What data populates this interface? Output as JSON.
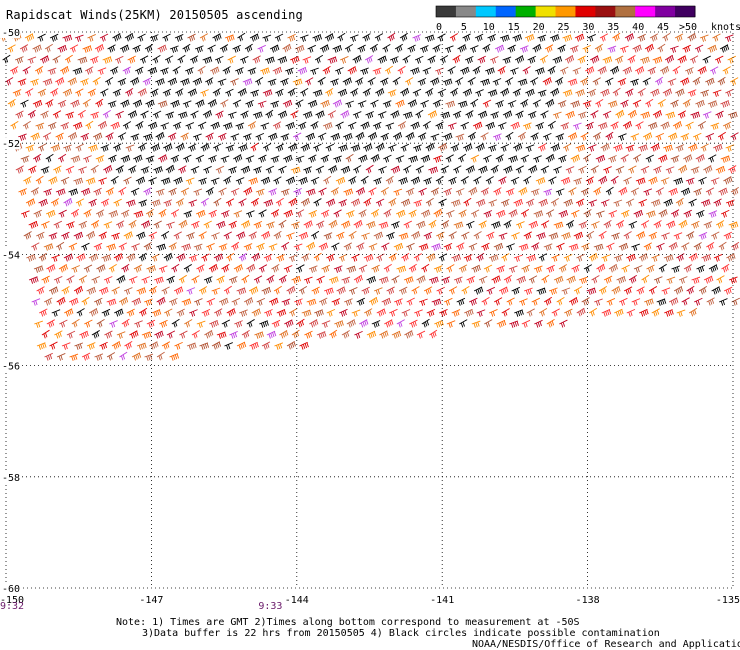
{
  "title": "Rapidscat Winds(25KM) 20150505 ascending",
  "legend": {
    "ticks": [
      "0",
      "5",
      "10",
      "15",
      "20",
      "25",
      "30",
      "35",
      "40",
      "45",
      ">50"
    ],
    "units": "knots",
    "colors": [
      "#3a3a3a",
      "#888888",
      "#00c8ff",
      "#0066ff",
      "#00b000",
      "#f0e000",
      "#ff9800",
      "#e00000",
      "#9a1010",
      "#b07040",
      "#ff00ff",
      "#8000a0",
      "#400060"
    ]
  },
  "map": {
    "lon_range": [
      -150,
      -135
    ],
    "lat_range": [
      -60,
      -50
    ],
    "lon_ticks": [
      "-150",
      "-147",
      "-144",
      "-141",
      "-138",
      "-135"
    ],
    "lat_ticks": [
      "-50",
      "-52",
      "-54",
      "-56",
      "-58",
      "-60"
    ],
    "lon_tick_values": [
      -150,
      -147,
      -144,
      -141,
      -138,
      -135
    ],
    "lat_tick_values": [
      -50,
      -52,
      -54,
      -56,
      -58,
      -60
    ],
    "time_labels": [
      {
        "lon": -150,
        "text": "9:32"
      },
      {
        "lon": -145,
        "text": "9:33"
      }
    ],
    "swath": {
      "south_edge_west_lat": -56.1,
      "south_edge_east_lat": -55.0
    }
  },
  "notes": {
    "line1": "Note: 1) Times are GMT 2)Times along bottom correspond to measurement at -50S",
    "line2": "3)Data buffer is 22 hrs from 20150505 4) Black circles indicate possible contamination",
    "credit": "NOAA/NESDIS/Office of Research and Applications"
  }
}
